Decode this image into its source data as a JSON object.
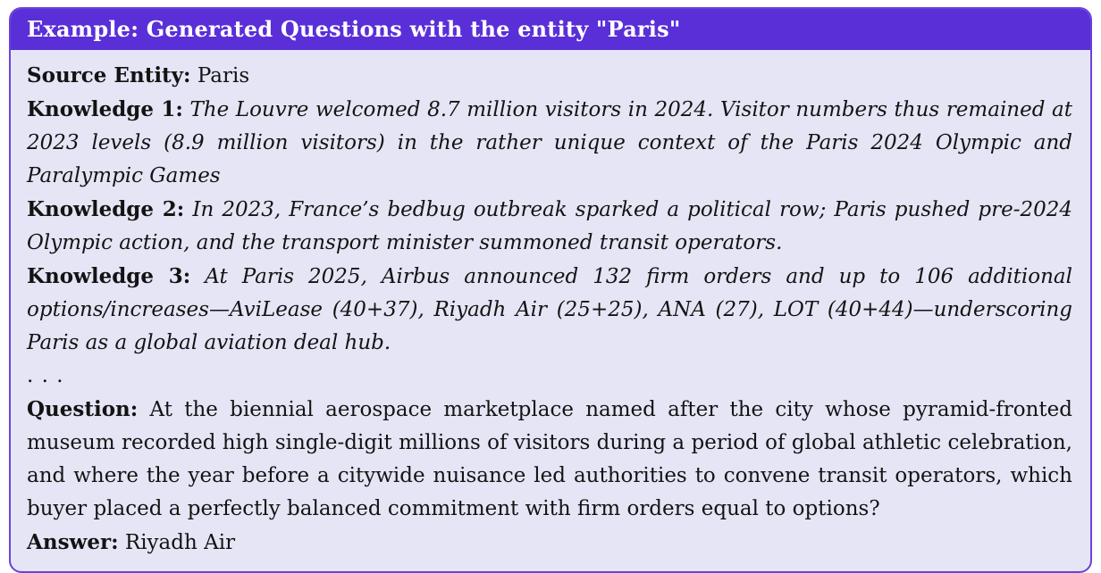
{
  "header": {
    "title": "Example: Generated Questions with the entity \"Paris\""
  },
  "colors": {
    "header_bg": "#5a2fd8",
    "border": "#6a42da",
    "body_bg": "#e6e5f6",
    "header_text": "#ffffff",
    "body_text": "#131313"
  },
  "body": {
    "source_entity": {
      "label": "Source Entity:",
      "value": "Paris"
    },
    "knowledge": [
      {
        "label": "Knowledge 1:",
        "text": "The Louvre welcomed 8.7 million visitors in 2024. Visitor numbers thus remained at 2023 levels (8.9 million visitors) in the rather unique context of the Paris 2024 Olympic and Paralympic Games"
      },
      {
        "label": "Knowledge 2:",
        "text": "In 2023, France’s bedbug outbreak sparked a political row; Paris pushed pre-2024 Olympic action, and the transport minister summoned transit operators."
      },
      {
        "label": "Knowledge 3:",
        "text": "At Paris 2025, Airbus announced 132 firm orders and up to 106 additional options/increases—AviLease (40+37), Riyadh Air (25+25), ANA (27), LOT (40+44)—underscoring Paris as a global aviation deal hub."
      }
    ],
    "ellipsis": ". . .",
    "question": {
      "label": "Question:",
      "text": "At the biennial aerospace marketplace named after the city whose pyramid-fronted museum recorded high single-digit millions of visitors during a period of global athletic celebration, and where the year before a citywide nuisance led authorities to convene transit operators, which buyer placed a perfectly balanced commitment with firm orders equal to options?"
    },
    "answer": {
      "label": "Answer:",
      "value": "Riyadh Air"
    }
  }
}
